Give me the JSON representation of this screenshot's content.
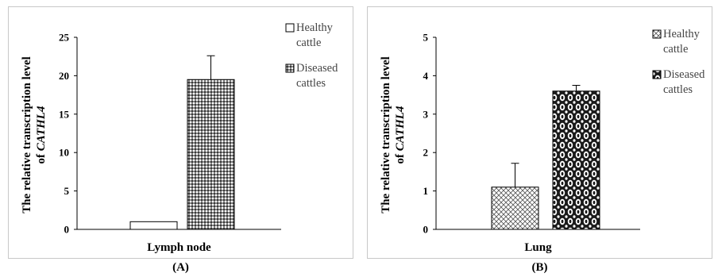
{
  "panels": [
    {
      "caption": "(A)",
      "ylabel_line1": "The relative transcription level",
      "ylabel_line2_prefix": "of ",
      "ylabel_line2_italic": "CATHL4",
      "chart_data": {
        "type": "bar",
        "categories": [
          "Lymph node"
        ],
        "xlabel": "Lymph node",
        "ylabel": "The relative transcription level of CATHL4",
        "ylim": [
          0,
          25
        ],
        "yticks": [
          0,
          5,
          10,
          15,
          20,
          25
        ],
        "grid": false,
        "legend_position": "right",
        "series": [
          {
            "name": "Healthy cattle",
            "legend_lines": [
              "Healthy",
              "cattle"
            ],
            "values": [
              1.0
            ],
            "error": [
              0.0
            ],
            "fill": "white"
          },
          {
            "name": "Diseased cattles",
            "legend_lines": [
              "Diseased",
              "cattles"
            ],
            "values": [
              19.5
            ],
            "error": [
              3.1
            ],
            "fill": "dots"
          }
        ]
      }
    },
    {
      "caption": "(B)",
      "ylabel_line1": "The relative transcription level",
      "ylabel_line2_prefix": "of ",
      "ylabel_line2_italic": "CATHL4",
      "chart_data": {
        "type": "bar",
        "categories": [
          "Lung"
        ],
        "xlabel": "Lung",
        "ylabel": "The relative transcription level of CATHL4",
        "ylim": [
          0,
          5
        ],
        "yticks": [
          0,
          1,
          2,
          3,
          4,
          5
        ],
        "grid": false,
        "legend_position": "right",
        "series": [
          {
            "name": "Healthy cattle",
            "legend_lines": [
              "Healthy",
              "cattle"
            ],
            "values": [
              1.1
            ],
            "error": [
              0.62
            ],
            "fill": "crosshatch"
          },
          {
            "name": "Diseased cattles",
            "legend_lines": [
              "Diseased",
              "cattles"
            ],
            "values": [
              3.6
            ],
            "error": [
              0.15
            ],
            "fill": "chain"
          }
        ]
      }
    }
  ]
}
